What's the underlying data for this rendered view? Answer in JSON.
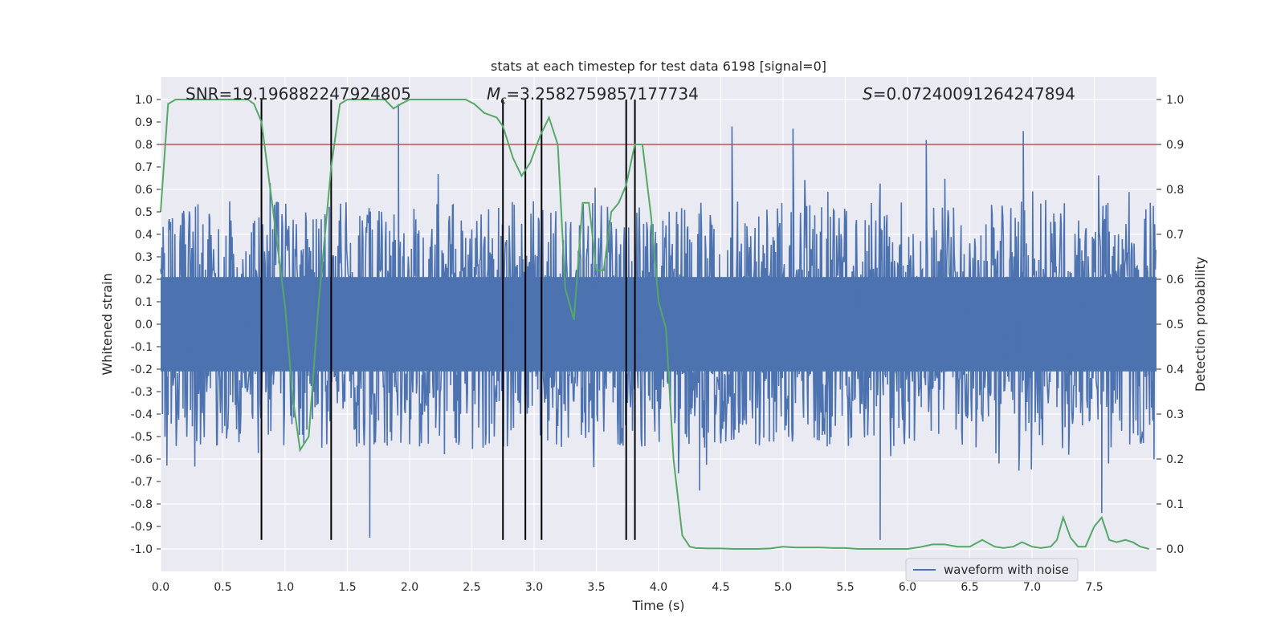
{
  "chart_data": {
    "type": "line",
    "title": "stats at each timestep for test data 6198 [signal=0]",
    "xlabel": "Time (s)",
    "ylabel": "Whitened strain",
    "y2label": "Detection probability",
    "xlim": [
      0.0,
      8.0
    ],
    "ylim": [
      -1.1,
      1.1
    ],
    "y2lim": [
      -0.05,
      1.05
    ],
    "x_ticks": [
      "0.0",
      "0.5",
      "1.0",
      "1.5",
      "2.0",
      "2.5",
      "3.0",
      "3.5",
      "4.0",
      "4.5",
      "5.0",
      "5.5",
      "6.0",
      "6.5",
      "7.0",
      "7.5"
    ],
    "y_ticks": [
      "1.0",
      "0.9",
      "0.8",
      "0.7",
      "0.6",
      "0.5",
      "0.4",
      "0.3",
      "0.2",
      "0.1",
      "0.0",
      "-0.1",
      "-0.2",
      "-0.3",
      "-0.4",
      "-0.5",
      "-0.6",
      "-0.7",
      "-0.8",
      "-0.9",
      "-1.0"
    ],
    "y2_ticks": [
      "1.0",
      "0.9",
      "0.8",
      "0.7",
      "0.6",
      "0.5",
      "0.4",
      "0.3",
      "0.2",
      "0.1",
      "0.0"
    ],
    "annotations": {
      "snr": "SNR=19.196882247924805",
      "mc_symbol": "M",
      "mc_sub": "c",
      "mc_value": "=3.2582759857177734",
      "s_symbol": "S",
      "s_value": "=0.07240091264247894"
    },
    "legend": {
      "label": "waveform with noise",
      "placement": "lower-right"
    },
    "threshold": {
      "y2": 0.9,
      "color": "#c44e52"
    },
    "vertical_lines_x": [
      0.81,
      1.37,
      2.75,
      2.93,
      3.06,
      3.74,
      3.81
    ],
    "vertical_lines_y_range": [
      -0.96,
      1.0
    ],
    "series": [
      {
        "name": "waveform with noise",
        "axis": "left",
        "color": "#4c72b0",
        "description": "noise waveform, ~±0.5 typical amplitude with spikes up to ±0.95",
        "spikes": [
          [
            1.68,
            -0.95
          ],
          [
            1.91,
            0.98
          ],
          [
            4.59,
            0.88
          ],
          [
            5.08,
            0.87
          ],
          [
            5.78,
            -0.96
          ],
          [
            6.15,
            0.82
          ],
          [
            6.93,
            0.86
          ],
          [
            7.56,
            -0.84
          ],
          [
            4.33,
            -0.74
          ]
        ]
      },
      {
        "name": "detection probability",
        "axis": "right",
        "color": "#55a868",
        "x": [
          0.0,
          0.06,
          0.12,
          0.2,
          0.3,
          0.4,
          0.5,
          0.6,
          0.7,
          0.75,
          0.81,
          0.9,
          1.0,
          1.06,
          1.12,
          1.19,
          1.27,
          1.37,
          1.44,
          1.5,
          1.6,
          1.7,
          1.8,
          1.87,
          1.93,
          2.0,
          2.1,
          2.2,
          2.3,
          2.4,
          2.45,
          2.52,
          2.6,
          2.7,
          2.75,
          2.83,
          2.9,
          2.97,
          3.05,
          3.12,
          3.19,
          3.25,
          3.32,
          3.39,
          3.44,
          3.5,
          3.56,
          3.62,
          3.68,
          3.74,
          3.81,
          3.87,
          3.94,
          4.0,
          4.06,
          4.12,
          4.19,
          4.25,
          4.3,
          4.4,
          4.5,
          4.6,
          4.7,
          4.8,
          4.9,
          5.0,
          5.1,
          5.2,
          5.3,
          5.4,
          5.5,
          5.6,
          5.7,
          5.8,
          5.9,
          6.0,
          6.1,
          6.2,
          6.3,
          6.4,
          6.5,
          6.6,
          6.7,
          6.77,
          6.85,
          6.92,
          7.0,
          7.07,
          7.15,
          7.2,
          7.25,
          7.31,
          7.37,
          7.43,
          7.5,
          7.56,
          7.62,
          7.68,
          7.75,
          7.81,
          7.87,
          7.94
        ],
        "y": [
          0.75,
          0.99,
          1.0,
          1.0,
          1.0,
          1.0,
          1.0,
          1.0,
          1.0,
          0.99,
          0.95,
          0.76,
          0.54,
          0.34,
          0.22,
          0.25,
          0.55,
          0.85,
          0.99,
          1.0,
          1.0,
          1.0,
          1.0,
          0.98,
          0.99,
          1.0,
          1.0,
          1.0,
          1.0,
          1.0,
          1.0,
          0.99,
          0.97,
          0.96,
          0.94,
          0.87,
          0.83,
          0.86,
          0.92,
          0.96,
          0.9,
          0.58,
          0.51,
          0.77,
          0.77,
          0.62,
          0.62,
          0.75,
          0.77,
          0.81,
          0.9,
          0.9,
          0.74,
          0.55,
          0.49,
          0.2,
          0.03,
          0.005,
          0.002,
          0.001,
          0.001,
          0.0,
          0.0,
          0.0,
          0.001,
          0.005,
          0.003,
          0.003,
          0.003,
          0.002,
          0.002,
          0.0,
          0.0,
          0.0,
          0.0,
          0.0,
          0.004,
          0.01,
          0.01,
          0.005,
          0.005,
          0.02,
          0.005,
          0.002,
          0.005,
          0.015,
          0.005,
          0.002,
          0.005,
          0.02,
          0.07,
          0.025,
          0.005,
          0.005,
          0.05,
          0.07,
          0.02,
          0.015,
          0.02,
          0.015,
          0.005,
          0.0
        ]
      }
    ]
  }
}
